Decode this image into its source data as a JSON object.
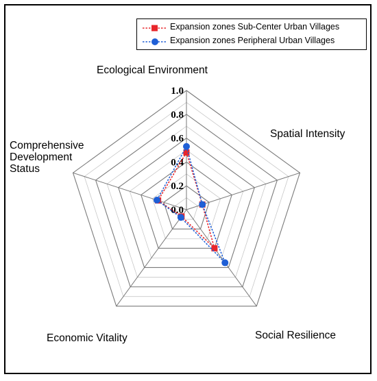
{
  "chart_data": {
    "type": "radar",
    "axes": [
      "Ecological Environment",
      "Spatial Intensity",
      "Social Resilience",
      "Economic Vitality",
      "Comprehensive Development Status"
    ],
    "axis_label_lines": [
      [
        "Ecological Environment"
      ],
      [
        "Spatial Intensity"
      ],
      [
        "Social Resilience"
      ],
      [
        "Economic Vitality"
      ],
      [
        "Comprehensive",
        "Development",
        "Status"
      ]
    ],
    "rlim": [
      0,
      1.0
    ],
    "ticks": [
      "0.0",
      "0.2",
      "0.4",
      "0.6",
      "0.8",
      "1.0"
    ],
    "tick_values": [
      0,
      0.2,
      0.4,
      0.6,
      0.8,
      1.0
    ],
    "grid": true,
    "legend_position": "top-right",
    "series": [
      {
        "name": "Expansion zones Sub-Center Urban Villages",
        "values": [
          0.48,
          0.14,
          0.4,
          0.07,
          0.25
        ],
        "color": "#e8262b",
        "marker": "square"
      },
      {
        "name": "Expansion zones Peripheral Urban Villages",
        "values": [
          0.53,
          0.14,
          0.55,
          0.08,
          0.26
        ],
        "color": "#1f5fd6",
        "marker": "circle"
      }
    ]
  }
}
